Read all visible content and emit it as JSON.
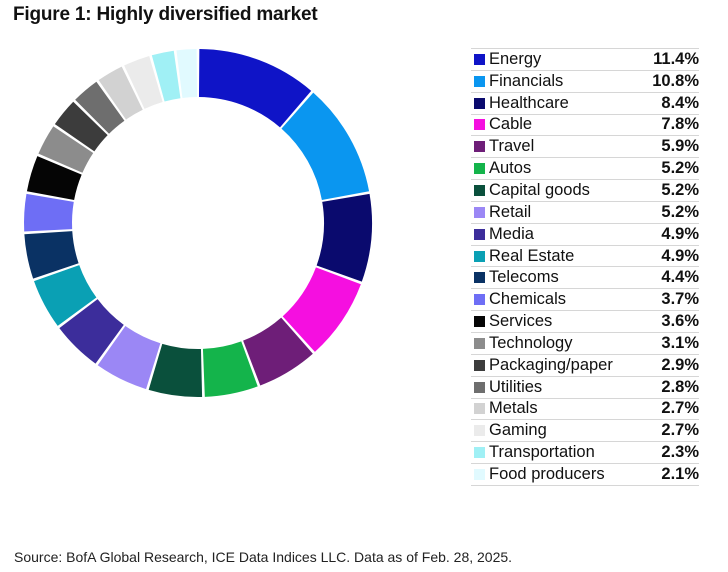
{
  "title": "Figure 1: Highly diversified market",
  "source": "Source: BofA Global Research, ICE Data Indices LLC. Data as of Feb. 28, 2025.",
  "chart_data": {
    "type": "pie",
    "style": "donut",
    "title": "Figure 1: Highly diversified market",
    "legend_position": "right",
    "series": [
      {
        "name": "Energy",
        "value": 11.4,
        "label": "11.4%",
        "color": "#0f14c7"
      },
      {
        "name": "Financials",
        "value": 10.8,
        "label": "10.8%",
        "color": "#0a96f0"
      },
      {
        "name": "Healthcare",
        "value": 8.4,
        "label": "8.4%",
        "color": "#0a0a6e"
      },
      {
        "name": "Cable",
        "value": 7.8,
        "label": "7.8%",
        "color": "#f50fe0"
      },
      {
        "name": "Travel",
        "value": 5.9,
        "label": "5.9%",
        "color": "#6e1e78"
      },
      {
        "name": "Autos",
        "value": 5.2,
        "label": "5.2%",
        "color": "#14b44b"
      },
      {
        "name": "Capital goods",
        "value": 5.2,
        "label": "5.2%",
        "color": "#0a503c"
      },
      {
        "name": "Retail",
        "value": 5.2,
        "label": "5.2%",
        "color": "#9b87f5"
      },
      {
        "name": "Media",
        "value": 4.9,
        "label": "4.9%",
        "color": "#3c2d9b"
      },
      {
        "name": "Real Estate",
        "value": 4.9,
        "label": "4.9%",
        "color": "#0aa0b4"
      },
      {
        "name": "Telecoms",
        "value": 4.4,
        "label": "4.4%",
        "color": "#0a3264"
      },
      {
        "name": "Chemicals",
        "value": 3.7,
        "label": "3.7%",
        "color": "#6e6ef5"
      },
      {
        "name": "Services",
        "value": 3.6,
        "label": "3.6%",
        "color": "#050505"
      },
      {
        "name": "Technology",
        "value": 3.1,
        "label": "3.1%",
        "color": "#8c8c8c"
      },
      {
        "name": "Packaging/paper",
        "value": 2.9,
        "label": "2.9%",
        "color": "#3c3c3c"
      },
      {
        "name": "Utilities",
        "value": 2.8,
        "label": "2.8%",
        "color": "#6e6e6e"
      },
      {
        "name": "Metals",
        "value": 2.7,
        "label": "2.7%",
        "color": "#d2d2d2"
      },
      {
        "name": "Gaming",
        "value": 2.7,
        "label": "2.7%",
        "color": "#ebebeb"
      },
      {
        "name": "Transportation",
        "value": 2.3,
        "label": "2.3%",
        "color": "#a0f0f5"
      },
      {
        "name": "Food producers",
        "value": 2.1,
        "label": "2.1%",
        "color": "#e1faff"
      }
    ]
  }
}
